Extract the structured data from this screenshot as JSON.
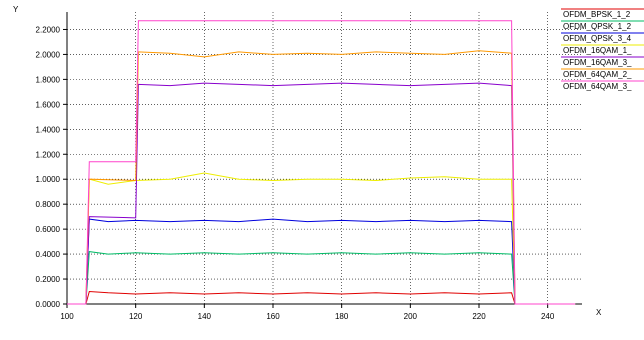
{
  "chart_data": {
    "type": "line",
    "xlabel": "X",
    "ylabel": "Y",
    "xlim": [
      100,
      250
    ],
    "ylim": [
      0,
      2.34
    ],
    "xticks": [
      100,
      120,
      140,
      160,
      180,
      200,
      220,
      240
    ],
    "xtick_labels": [
      "100",
      "120",
      "140",
      "160",
      "180",
      "200",
      "220",
      "240"
    ],
    "yticks": [
      0,
      0.2,
      0.4,
      0.6,
      0.8,
      1.0,
      1.2,
      1.4,
      1.6,
      1.8,
      2.0,
      2.2
    ],
    "ytick_labels": [
      "0.0000",
      "0.2000",
      "0.4000",
      "0.6000",
      "0.8000",
      "1.0000",
      "1.2000",
      "1.4000",
      "1.6000",
      "1.8000",
      "2.0000",
      "2.2000"
    ],
    "grid": true,
    "legend_position": "top-right",
    "series": [
      {
        "name": "OFDM_BPSK_1_2",
        "color": "#e00000",
        "points": [
          [
            100,
            0
          ],
          [
            105.5,
            0
          ],
          [
            106.5,
            0.1
          ],
          [
            112,
            0.09
          ],
          [
            120,
            0.08
          ],
          [
            130,
            0.09
          ],
          [
            140,
            0.08
          ],
          [
            150,
            0.09
          ],
          [
            160,
            0.08
          ],
          [
            170,
            0.09
          ],
          [
            180,
            0.08
          ],
          [
            190,
            0.09
          ],
          [
            200,
            0.08
          ],
          [
            210,
            0.09
          ],
          [
            220,
            0.08
          ],
          [
            229.5,
            0.09
          ],
          [
            230.5,
            0
          ],
          [
            248,
            0
          ]
        ]
      },
      {
        "name": "OFDM_QPSK_1_2",
        "color": "#00bb66",
        "points": [
          [
            100,
            0
          ],
          [
            105.5,
            0
          ],
          [
            106.5,
            0.42
          ],
          [
            112,
            0.4
          ],
          [
            120,
            0.41
          ],
          [
            130,
            0.4
          ],
          [
            140,
            0.41
          ],
          [
            150,
            0.4
          ],
          [
            160,
            0.41
          ],
          [
            170,
            0.4
          ],
          [
            180,
            0.41
          ],
          [
            190,
            0.4
          ],
          [
            200,
            0.41
          ],
          [
            210,
            0.4
          ],
          [
            220,
            0.41
          ],
          [
            229.5,
            0.4
          ],
          [
            230.5,
            0
          ],
          [
            248,
            0
          ]
        ]
      },
      {
        "name": "OFDM_QPSK_3_4",
        "color": "#0000dd",
        "points": [
          [
            100,
            0
          ],
          [
            105.5,
            0
          ],
          [
            106.5,
            0.68
          ],
          [
            112,
            0.66
          ],
          [
            120,
            0.67
          ],
          [
            130,
            0.66
          ],
          [
            140,
            0.67
          ],
          [
            150,
            0.66
          ],
          [
            160,
            0.68
          ],
          [
            170,
            0.66
          ],
          [
            180,
            0.67
          ],
          [
            190,
            0.66
          ],
          [
            200,
            0.67
          ],
          [
            210,
            0.66
          ],
          [
            220,
            0.67
          ],
          [
            229.5,
            0.66
          ],
          [
            230.5,
            0
          ],
          [
            248,
            0
          ]
        ]
      },
      {
        "name": "OFDM_16QAM_1_",
        "color": "#eeee00",
        "points": [
          [
            100,
            0
          ],
          [
            105.5,
            0
          ],
          [
            106.5,
            1.0
          ],
          [
            112,
            0.96
          ],
          [
            120,
            0.99
          ],
          [
            130,
            1.0
          ],
          [
            140,
            1.05
          ],
          [
            150,
            1.0
          ],
          [
            160,
            0.99
          ],
          [
            170,
            1.0
          ],
          [
            180,
            1.0
          ],
          [
            190,
            0.99
          ],
          [
            200,
            1.01
          ],
          [
            210,
            1.02
          ],
          [
            220,
            1.0
          ],
          [
            229.5,
            1.0
          ],
          [
            230.5,
            0
          ],
          [
            248,
            0
          ]
        ]
      },
      {
        "name": "OFDM_16QAM_3_",
        "color": "#8800cc",
        "points": [
          [
            100,
            0
          ],
          [
            105.5,
            0
          ],
          [
            106.5,
            0.7
          ],
          [
            120,
            0.69
          ],
          [
            120.8,
            1.76
          ],
          [
            130,
            1.75
          ],
          [
            140,
            1.77
          ],
          [
            150,
            1.76
          ],
          [
            160,
            1.75
          ],
          [
            170,
            1.76
          ],
          [
            180,
            1.77
          ],
          [
            190,
            1.76
          ],
          [
            200,
            1.75
          ],
          [
            210,
            1.76
          ],
          [
            220,
            1.77
          ],
          [
            229.5,
            1.75
          ],
          [
            230.5,
            0
          ],
          [
            248,
            0
          ]
        ]
      },
      {
        "name": "OFDM_64QAM_2_",
        "color": "#ff9900",
        "points": [
          [
            100,
            0
          ],
          [
            105.5,
            0
          ],
          [
            106.5,
            1.0
          ],
          [
            120,
            0.99
          ],
          [
            120.8,
            2.02
          ],
          [
            130,
            2.01
          ],
          [
            140,
            1.98
          ],
          [
            150,
            2.02
          ],
          [
            160,
            2.0
          ],
          [
            170,
            2.01
          ],
          [
            180,
            2.0
          ],
          [
            190,
            2.02
          ],
          [
            200,
            2.01
          ],
          [
            210,
            2.0
          ],
          [
            220,
            2.03
          ],
          [
            229.5,
            2.01
          ],
          [
            230.5,
            0
          ],
          [
            248,
            0
          ]
        ]
      },
      {
        "name": "OFDM_64QAM_3_",
        "color": "#ff44cc",
        "points": [
          [
            100,
            0
          ],
          [
            105.5,
            0
          ],
          [
            106.5,
            1.14
          ],
          [
            120,
            1.14
          ],
          [
            120.8,
            2.27
          ],
          [
            229.5,
            2.27
          ],
          [
            230.5,
            0
          ],
          [
            248,
            0
          ]
        ]
      }
    ]
  }
}
